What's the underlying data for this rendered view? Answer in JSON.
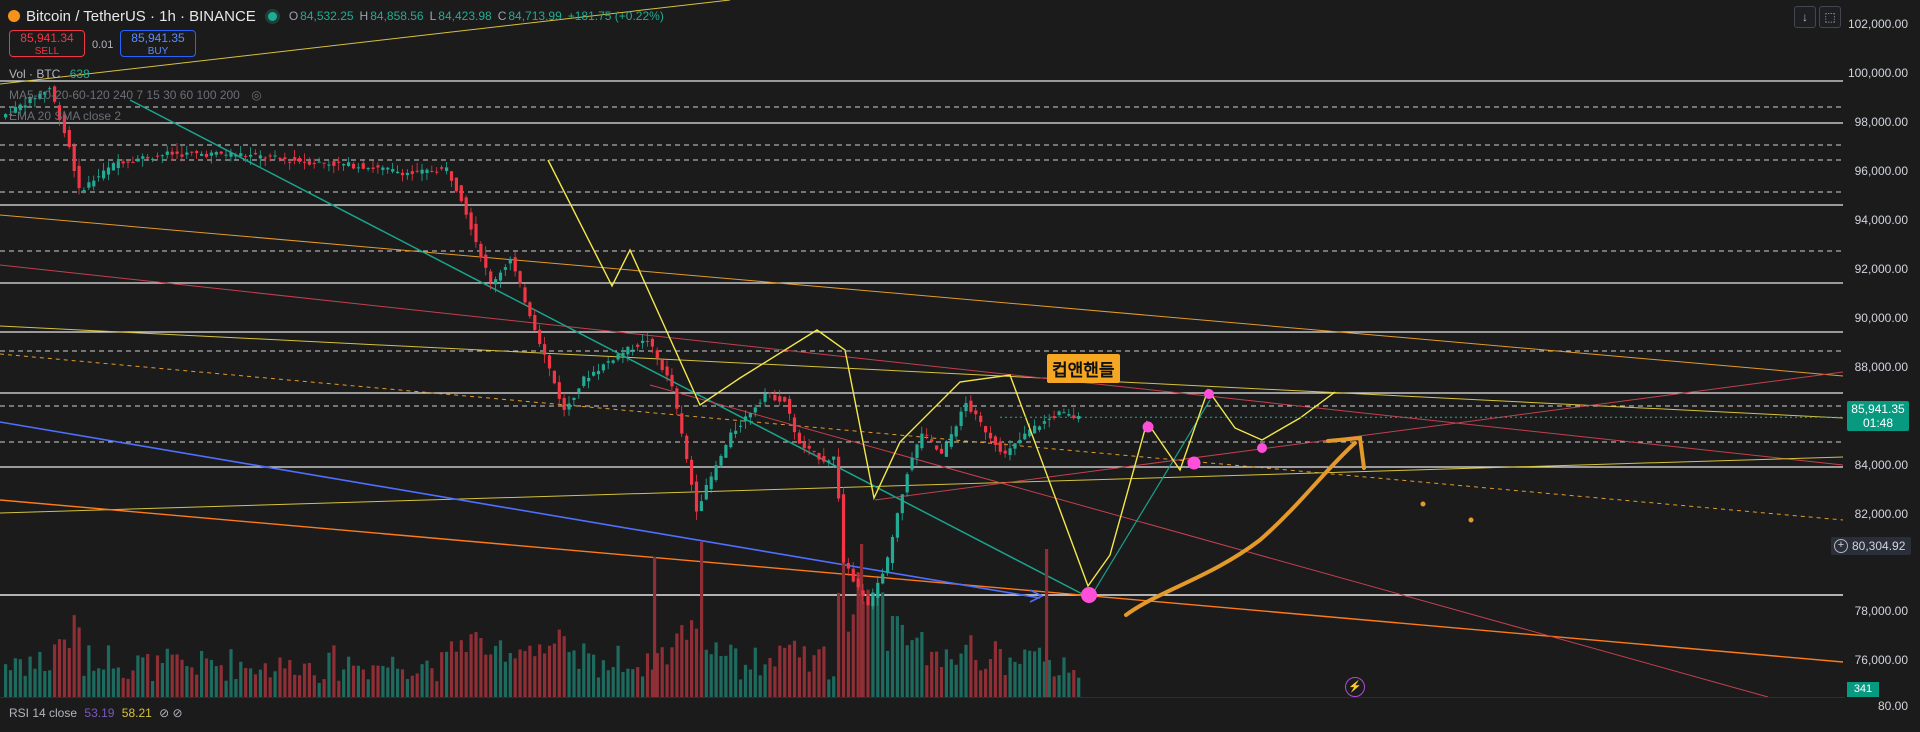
{
  "header": {
    "title": "Bitcoin / TetherUS · 1h · BINANCE",
    "ohlc": {
      "o_label": "O",
      "o": "84,532.25",
      "h_label": "H",
      "h": "84,858.56",
      "l_label": "L",
      "l": "84,423.98",
      "c_label": "C",
      "c": "84,713.99",
      "change": "+181.75 (+0.22%)"
    }
  },
  "trade": {
    "sell_price": "85,941.34",
    "sell_label": "SELL",
    "spread": "0.01",
    "buy_price": "85,941.35",
    "buy_label": "BUY"
  },
  "indicators": {
    "vol_label": "Vol · BTC",
    "vol_value": "638",
    "ma_label": "MA5-10-20-60-120 240 7 15 30 60 100 200",
    "ema_label": "EMA 20 SMA close 2",
    "rsi_label": "RSI 14 close",
    "rsi_value1": "53.19",
    "rsi_value2": "58.21",
    "rsi_icons": "⊘ ⊘"
  },
  "price_axis": {
    "labels": [
      "102,000.00",
      "100,000.00",
      "98,000.00",
      "96,000.00",
      "94,000.00",
      "92,000.00",
      "90,000.00",
      "88,000.00",
      "84,000.00",
      "82,000.00",
      "78,000.00",
      "76,000.00"
    ],
    "current_price": "85,941.35",
    "countdown": "01:48",
    "marked_level": "80,304.92",
    "volume_tag": "341",
    "rsi_level": "80.00"
  },
  "annotation": {
    "pattern_label": "컵앤핸들"
  },
  "colors": {
    "up": "#22ab94",
    "down": "#f23645",
    "accent_orange": "#f5a623",
    "magenta": "#ff4fd8"
  },
  "icons": {
    "download": "download-icon",
    "fullscreen": "fullscreen-icon",
    "bolt": "bolt-icon",
    "eye": "eye-off-icon"
  },
  "chart_data": {
    "type": "candlestick",
    "symbol": "Bitcoin / TetherUS",
    "interval": "1h",
    "ylim": [
      74500,
      103000
    ],
    "anchors": [
      [
        0,
        98200
      ],
      [
        50,
        99400
      ],
      [
        70,
        97000
      ],
      [
        80,
        95200
      ],
      [
        120,
        96400
      ],
      [
        170,
        96700
      ],
      [
        240,
        96700
      ],
      [
        310,
        96400
      ],
      [
        370,
        96200
      ],
      [
        420,
        95900
      ],
      [
        455,
        96100
      ],
      [
        470,
        94900
      ],
      [
        500,
        91400
      ],
      [
        520,
        92400
      ],
      [
        545,
        89600
      ],
      [
        575,
        86200
      ],
      [
        595,
        87500
      ],
      [
        630,
        88500
      ],
      [
        660,
        89100
      ],
      [
        685,
        87200
      ],
      [
        710,
        82200
      ],
      [
        745,
        85200
      ],
      [
        780,
        86900
      ],
      [
        800,
        86600
      ],
      [
        815,
        84800
      ],
      [
        840,
        84200
      ],
      [
        852,
        84300
      ],
      [
        860,
        80000
      ],
      [
        885,
        78200
      ],
      [
        905,
        80100
      ],
      [
        925,
        83700
      ],
      [
        940,
        85300
      ],
      [
        960,
        84400
      ],
      [
        985,
        86500
      ],
      [
        1005,
        85400
      ],
      [
        1025,
        84400
      ],
      [
        1050,
        85400
      ],
      [
        1080,
        86100
      ],
      [
        1100,
        85900
      ]
    ],
    "current_price": 85941.35,
    "marked_level": 80304.92
  }
}
